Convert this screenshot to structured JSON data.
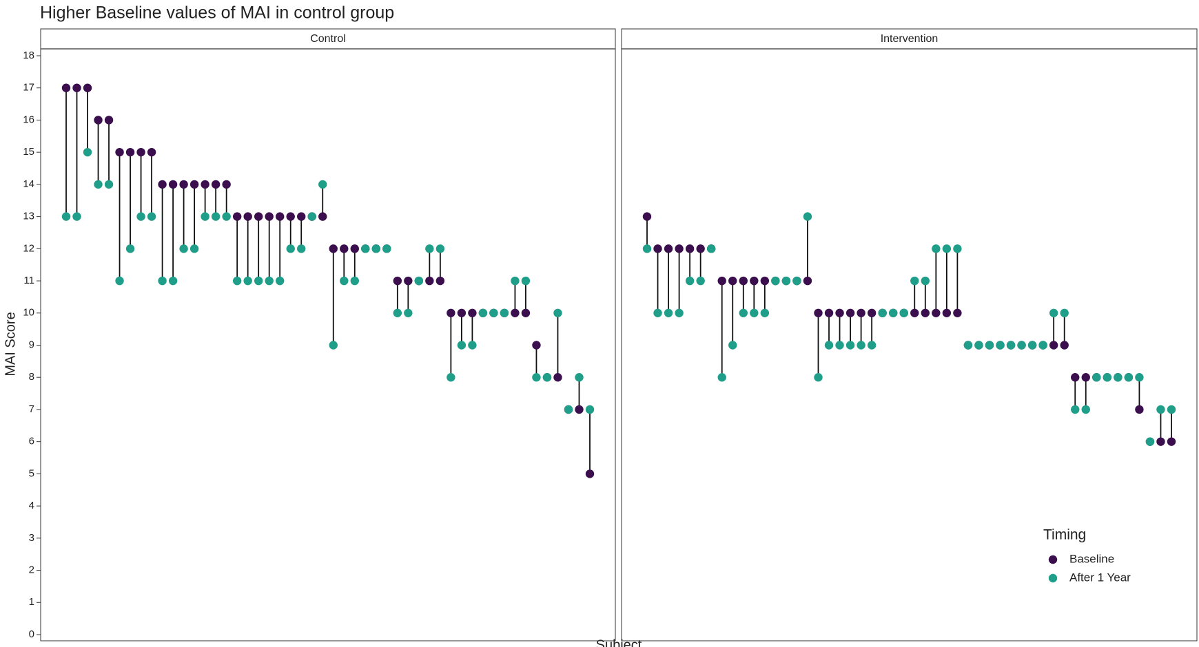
{
  "chart_data": {
    "type": "dumbbell",
    "title": "Higher Baseline values of MAI in control group",
    "xlabel": "Subject",
    "ylabel": "MAI Score",
    "ylim": [
      0,
      18
    ],
    "yticks": [
      0,
      1,
      2,
      3,
      4,
      5,
      6,
      7,
      8,
      9,
      10,
      11,
      12,
      13,
      14,
      15,
      16,
      17,
      18
    ],
    "legend": {
      "title": "Timing",
      "position": "bottom-right"
    },
    "facets": [
      {
        "label": "Control",
        "series": [
          {
            "name": "Baseline",
            "color": "#3b0f4e",
            "values": [
              17,
              17,
              17,
              16,
              16,
              15,
              15,
              15,
              15,
              14,
              14,
              14,
              14,
              14,
              14,
              14,
              13,
              13,
              13,
              13,
              13,
              13,
              13,
              13,
              13,
              12,
              12,
              12,
              12,
              12,
              12,
              11,
              11,
              11,
              11,
              11,
              10,
              10,
              10,
              10,
              10,
              10,
              10,
              10,
              9,
              8,
              8,
              7,
              7,
              5
            ]
          },
          {
            "name": "After 1 Year",
            "color": "#1f9e89",
            "values": [
              13,
              13,
              15,
              14,
              14,
              11,
              12,
              13,
              13,
              11,
              11,
              12,
              12,
              13,
              13,
              13,
              11,
              11,
              11,
              11,
              11,
              12,
              12,
              13,
              14,
              9,
              11,
              11,
              12,
              12,
              12,
              10,
              10,
              11,
              12,
              12,
              8,
              9,
              9,
              10,
              10,
              10,
              11,
              11,
              8,
              8,
              10,
              7,
              8,
              7
            ]
          }
        ]
      },
      {
        "label": "Intervention",
        "series": [
          {
            "name": "Baseline",
            "color": "#3b0f4e",
            "values": [
              13,
              12,
              12,
              12,
              12,
              12,
              12,
              11,
              11,
              11,
              11,
              11,
              11,
              11,
              11,
              11,
              10,
              10,
              10,
              10,
              10,
              10,
              10,
              10,
              10,
              10,
              10,
              10,
              10,
              10,
              9,
              9,
              9,
              9,
              9,
              9,
              9,
              9,
              9,
              9,
              8,
              8,
              8,
              8,
              8,
              8,
              7,
              6,
              6,
              6
            ]
          },
          {
            "name": "After 1 Year",
            "color": "#1f9e89",
            "values": [
              12,
              10,
              10,
              10,
              11,
              11,
              12,
              8,
              9,
              10,
              10,
              10,
              11,
              11,
              11,
              13,
              8,
              9,
              9,
              9,
              9,
              9,
              10,
              10,
              10,
              11,
              11,
              12,
              12,
              12,
              9,
              9,
              9,
              9,
              9,
              9,
              9,
              9,
              10,
              10,
              7,
              7,
              8,
              8,
              8,
              8,
              8,
              6,
              7,
              7
            ]
          }
        ]
      }
    ]
  }
}
